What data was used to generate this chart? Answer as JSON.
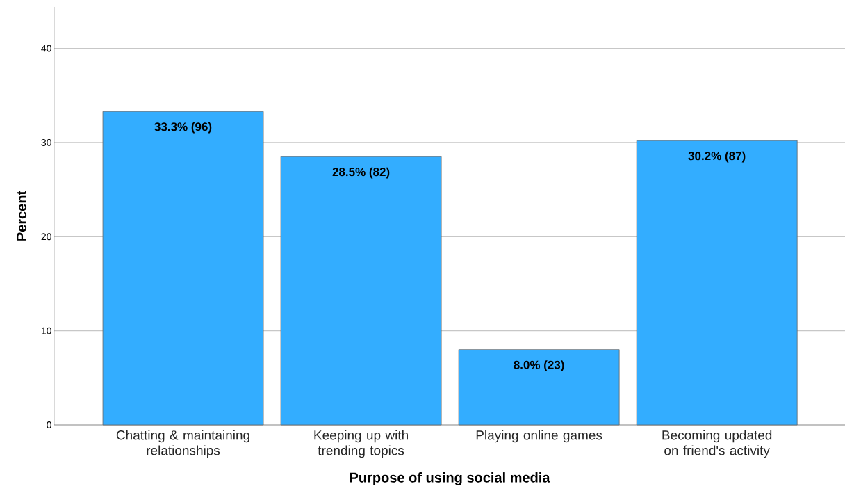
{
  "chart_data": {
    "type": "bar",
    "xlabel": "Purpose of using social media",
    "ylabel": "Percent",
    "categories": [
      "Chatting & maintaining relationships",
      "Keeping up with trending topics",
      "Playing online games",
      "Becoming updated on friend's activity"
    ],
    "values": [
      33.3,
      28.5,
      8.0,
      30.2
    ],
    "value_labels": [
      "33.3% (96)",
      "28.5% (82)",
      "8.0% (23)",
      "30.2% (87)"
    ],
    "color": "#33adff",
    "ylim": [
      0,
      44.4
    ],
    "yticks": [
      0,
      10,
      20,
      30,
      40
    ],
    "grid": "y"
  }
}
